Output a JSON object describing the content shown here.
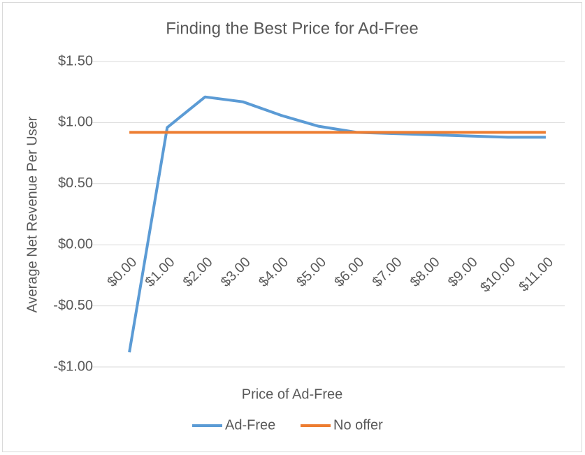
{
  "chart_data": {
    "type": "line",
    "title": "Finding the Best Price for Ad-Free",
    "x_label": "Price of Ad-Free",
    "y_label": "Average Net Revenue Per User",
    "categories": [
      "$0.00",
      "$1.00",
      "$2.00",
      "$3.00",
      "$4.00",
      "$5.00",
      "$6.00",
      "$7.00",
      "$8.00",
      "$9.00",
      "$10.00",
      "$11.00"
    ],
    "series": [
      {
        "name": "Ad-Free",
        "color": "#5b9bd5",
        "values": [
          -0.88,
          0.96,
          1.21,
          1.17,
          1.06,
          0.97,
          0.92,
          0.91,
          0.9,
          0.89,
          0.88,
          0.88
        ]
      },
      {
        "name": "No offer",
        "color": "#ed7d31",
        "values": [
          0.92,
          0.92,
          0.92,
          0.92,
          0.92,
          0.92,
          0.92,
          0.92,
          0.92,
          0.92,
          0.92,
          0.92
        ]
      }
    ],
    "ylim": [
      -1,
      1.5
    ],
    "yticks": [
      {
        "value": -1,
        "label": "-$1.00"
      },
      {
        "value": -0.5,
        "label": "-$0.50"
      },
      {
        "value": 0,
        "label": "$0.00"
      },
      {
        "value": 0.5,
        "label": "$0.50"
      },
      {
        "value": 1,
        "label": "$1.00"
      },
      {
        "value": 1.5,
        "label": "$1.50"
      }
    ],
    "grid": true,
    "legend": "bottom"
  }
}
